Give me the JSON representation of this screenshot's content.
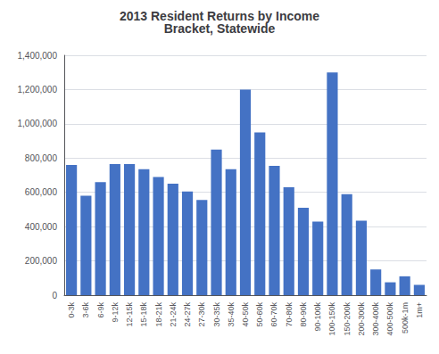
{
  "chart_data": {
    "type": "bar",
    "title": "2013 Resident Returns by Income\nBracket, Statewide",
    "categories": [
      "0-3k",
      "3-6k",
      "6-9k",
      "9-12k",
      "12-15k",
      "15-18k",
      "18-21k",
      "21-24k",
      "24-27k",
      "27-30k",
      "30-35k",
      "35-40k",
      "40-50k",
      "50-60k",
      "60-70k",
      "70-80k",
      "80-90k",
      "90-100k",
      "100-150k",
      "150-200k",
      "200-300k",
      "300-400k",
      "400-500k",
      "500k-1m",
      "1m+"
    ],
    "values": [
      760000,
      580000,
      660000,
      765000,
      765000,
      735000,
      690000,
      650000,
      605000,
      555000,
      850000,
      735000,
      1200000,
      950000,
      755000,
      630000,
      510000,
      430000,
      1300000,
      590000,
      435000,
      150000,
      75000,
      110000,
      60000
    ],
    "color": "#4472C4",
    "ylim": [
      0,
      1400000
    ],
    "yticks": [
      0,
      {
        "value": 200000,
        "label": "200,000"
      },
      {
        "value": 400000,
        "label": "400,000"
      },
      {
        "value": 600000,
        "label": "600,000"
      },
      {
        "value": 800000,
        "label": "800,000"
      },
      {
        "value": 1000000,
        "label": "1,000,000"
      },
      {
        "value": 1200000,
        "label": "1,200,000"
      },
      {
        "value": 1400000,
        "label": "1,400,000"
      }
    ],
    "grid": true
  }
}
